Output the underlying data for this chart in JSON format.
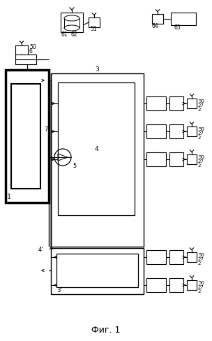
{
  "title": "Фиг. 1",
  "bg_color": "#ffffff",
  "fig_width": 3.04,
  "fig_height": 4.88,
  "dpi": 100
}
